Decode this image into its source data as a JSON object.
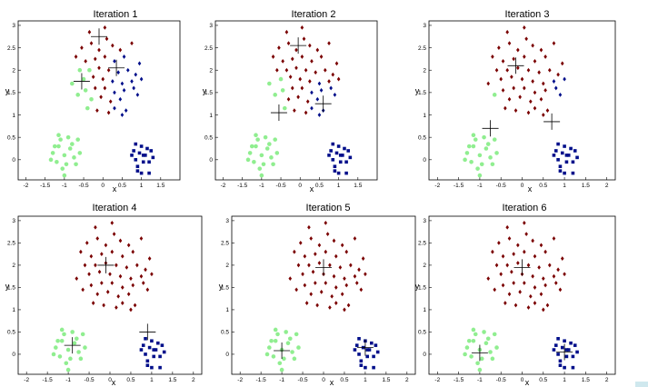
{
  "colors": {
    "red_cluster": "#7a0000",
    "blue_cluster": "#000e8a",
    "green_cluster": "#90ee90",
    "centroid": "#000000",
    "axis": "#000000"
  },
  "chart_data": [
    {
      "type": "scatter",
      "title": "Iteration 1",
      "xlabel": "x",
      "ylabel": "y",
      "xlim": [
        -2.2,
        2.0
      ],
      "ylim": [
        -0.45,
        3.1
      ],
      "xticks": [
        "-2",
        "-1.5",
        "-1",
        "-0.5",
        "0",
        "0.5",
        "1",
        "1.5"
      ],
      "yticks": [
        "0",
        "0.5",
        "1",
        "1.5",
        "2",
        "2.5",
        "3"
      ],
      "grid": false,
      "centroids": [
        [
          -0.1,
          2.75
        ],
        [
          -0.55,
          1.75
        ],
        [
          0.35,
          2.05
        ]
      ],
      "assignment": "early"
    },
    {
      "type": "scatter",
      "title": "Iteration 2",
      "xlabel": "x",
      "ylabel": "y",
      "xlim": [
        -2.2,
        2.0
      ],
      "ylim": [
        -0.45,
        3.1
      ],
      "xticks": [
        "-2",
        "-1.5",
        "-1",
        "-0.5",
        "0",
        "0.5",
        "1",
        "1.5"
      ],
      "yticks": [
        "0",
        "0.5",
        "1",
        "1.5",
        "2",
        "2.5",
        "3"
      ],
      "grid": false,
      "centroids": [
        [
          -0.05,
          2.55
        ],
        [
          -0.55,
          1.05
        ],
        [
          0.6,
          1.25
        ]
      ],
      "assignment": "iter2"
    },
    {
      "type": "scatter",
      "title": "Iteration 3",
      "xlabel": "x",
      "ylabel": "y",
      "xlim": [
        -2.2,
        2.2
      ],
      "ylim": [
        -0.45,
        3.1
      ],
      "xticks": [
        "-2",
        "-1.5",
        "-1",
        "-0.5",
        "0",
        "0.5",
        "1",
        "1.5",
        "2"
      ],
      "yticks": [
        "0",
        "0.5",
        "1",
        "1.5",
        "2",
        "2.5",
        "3"
      ],
      "grid": false,
      "centroids": [
        [
          -0.15,
          2.1
        ],
        [
          -0.75,
          0.7
        ],
        [
          0.7,
          0.85
        ]
      ],
      "assignment": "iter3"
    },
    {
      "type": "scatter",
      "title": "Iteration 4",
      "xlabel": "x",
      "ylabel": "y",
      "xlim": [
        -2.2,
        2.2
      ],
      "ylim": [
        -0.45,
        3.1
      ],
      "xticks": [
        "-2",
        "-1.5",
        "-1",
        "-0.5",
        "0",
        "0.5",
        "1",
        "1.5",
        "2"
      ],
      "yticks": [
        "0",
        "0.5",
        "1",
        "1.5",
        "2",
        "2.5",
        "3"
      ],
      "grid": false,
      "centroids": [
        [
          -0.1,
          2.0
        ],
        [
          -0.9,
          0.2
        ],
        [
          0.9,
          0.5
        ]
      ],
      "assignment": "final"
    },
    {
      "type": "scatter",
      "title": "Iteration 5",
      "xlabel": "x",
      "ylabel": "y",
      "xlim": [
        -2.2,
        2.2
      ],
      "ylim": [
        -0.45,
        3.1
      ],
      "xticks": [
        "-2",
        "-1.5",
        "-1",
        "-0.5",
        "0",
        "0.5",
        "1",
        "1.5",
        "2"
      ],
      "yticks": [
        "0",
        "0.5",
        "1",
        "1.5",
        "2",
        "2.5",
        "3"
      ],
      "grid": false,
      "centroids": [
        [
          0.0,
          1.95
        ],
        [
          -1.0,
          0.08
        ],
        [
          1.0,
          0.15
        ]
      ],
      "assignment": "final"
    },
    {
      "type": "scatter",
      "title": "Iteration 6",
      "xlabel": "x",
      "ylabel": "y",
      "xlim": [
        -2.2,
        2.2
      ],
      "ylim": [
        -0.45,
        3.1
      ],
      "xticks": [
        "-2",
        "-1.5",
        "-1",
        "-0.5",
        "0",
        "0.5",
        "1",
        "1.5",
        "2"
      ],
      "yticks": [
        "0",
        "0.5",
        "1",
        "1.5",
        "2",
        "2.5",
        "3"
      ],
      "grid": false,
      "centroids": [
        [
          0.0,
          1.95
        ],
        [
          -1.0,
          0.03
        ],
        [
          1.0,
          0.05
        ]
      ],
      "assignment": "final"
    }
  ],
  "points": [
    [
      -0.55,
      2.5
    ],
    [
      -0.3,
      2.6
    ],
    [
      0.1,
      2.7
    ],
    [
      -0.1,
      2.45
    ],
    [
      0.25,
      2.55
    ],
    [
      0.45,
      2.45
    ],
    [
      -0.45,
      2.2
    ],
    [
      -0.2,
      2.25
    ],
    [
      0.05,
      2.3
    ],
    [
      0.3,
      2.2
    ],
    [
      0.55,
      2.3
    ],
    [
      -0.6,
      2.0
    ],
    [
      -0.35,
      2.0
    ],
    [
      -0.1,
      2.05
    ],
    [
      0.15,
      2.0
    ],
    [
      0.4,
      1.95
    ],
    [
      0.65,
      2.0
    ],
    [
      0.85,
      1.9
    ],
    [
      -0.5,
      1.8
    ],
    [
      -0.25,
      1.85
    ],
    [
      0.0,
      1.8
    ],
    [
      0.25,
      1.75
    ],
    [
      0.5,
      1.7
    ],
    [
      0.75,
      1.75
    ],
    [
      1.0,
      1.8
    ],
    [
      -0.45,
      1.55
    ],
    [
      -0.2,
      1.6
    ],
    [
      0.05,
      1.6
    ],
    [
      0.3,
      1.5
    ],
    [
      0.55,
      1.55
    ],
    [
      0.8,
      1.6
    ],
    [
      -0.3,
      1.35
    ],
    [
      -0.05,
      1.4
    ],
    [
      0.2,
      1.3
    ],
    [
      0.45,
      1.35
    ],
    [
      -0.15,
      1.1
    ],
    [
      0.3,
      1.15
    ],
    [
      0.6,
      1.1
    ],
    [
      -0.7,
      2.3
    ],
    [
      0.75,
      2.6
    ],
    [
      -0.4,
      1.15
    ],
    [
      0.05,
      2.95
    ],
    [
      -0.35,
      2.85
    ],
    [
      0.9,
      1.45
    ],
    [
      -0.8,
      1.7
    ],
    [
      0.5,
      1.0
    ],
    [
      0.15,
      1.05
    ],
    [
      -0.65,
      1.45
    ],
    [
      0.95,
      2.15
    ],
    [
      -1.3,
      0.15
    ],
    [
      -1.15,
      0.3
    ],
    [
      -1.0,
      0.1
    ],
    [
      -0.85,
      0.25
    ],
    [
      -0.75,
      0.05
    ],
    [
      -1.2,
      -0.05
    ],
    [
      -0.95,
      -0.1
    ],
    [
      -1.1,
      0.45
    ],
    [
      -0.8,
      0.35
    ],
    [
      -1.25,
      0.3
    ],
    [
      -0.9,
      0.5
    ],
    [
      -1.05,
      -0.2
    ],
    [
      -0.7,
      -0.1
    ],
    [
      -1.35,
      0.0
    ],
    [
      -0.6,
      0.15
    ],
    [
      -1.0,
      -0.35
    ],
    [
      -0.65,
      0.45
    ],
    [
      -1.15,
      0.55
    ],
    [
      0.8,
      0.2
    ],
    [
      0.95,
      0.15
    ],
    [
      1.1,
      0.1
    ],
    [
      1.25,
      0.2
    ],
    [
      0.85,
      0.0
    ],
    [
      1.05,
      -0.05
    ],
    [
      1.2,
      -0.05
    ],
    [
      0.9,
      -0.15
    ],
    [
      1.15,
      0.25
    ],
    [
      1.0,
      0.3
    ],
    [
      0.75,
      0.1
    ],
    [
      1.3,
      0.05
    ],
    [
      1.0,
      -0.3
    ],
    [
      1.2,
      -0.3
    ],
    [
      0.85,
      0.35
    ],
    [
      1.05,
      0.1
    ],
    [
      0.9,
      -0.25
    ]
  ]
}
